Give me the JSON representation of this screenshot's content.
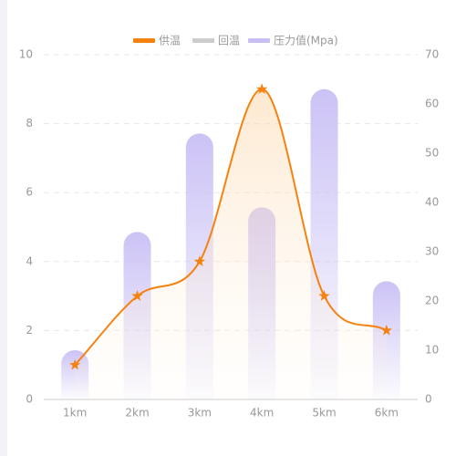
{
  "chart_data": {
    "type": "combo",
    "categories": [
      "1km",
      "2km",
      "3km",
      "4km",
      "5km",
      "6km"
    ],
    "series": [
      {
        "name": "供温",
        "type": "line",
        "color": "#f5820f",
        "values": [
          1,
          3,
          4,
          9,
          3,
          2
        ]
      },
      {
        "name": "回温",
        "type": "line",
        "color": "#cccccc"
      },
      {
        "name": "压力值(Mpa)",
        "type": "bar",
        "axis": "y2",
        "color": "#c9bff5",
        "values": [
          10,
          34,
          54,
          39,
          63,
          24
        ]
      }
    ],
    "ylim": [
      0,
      10
    ],
    "yticks": [
      0,
      2,
      4,
      6,
      8,
      10
    ],
    "y2lim": [
      0,
      70
    ],
    "y2ticks": [
      0,
      10,
      20,
      30,
      40,
      50,
      60,
      70
    ],
    "grid": true,
    "legend": "top"
  }
}
